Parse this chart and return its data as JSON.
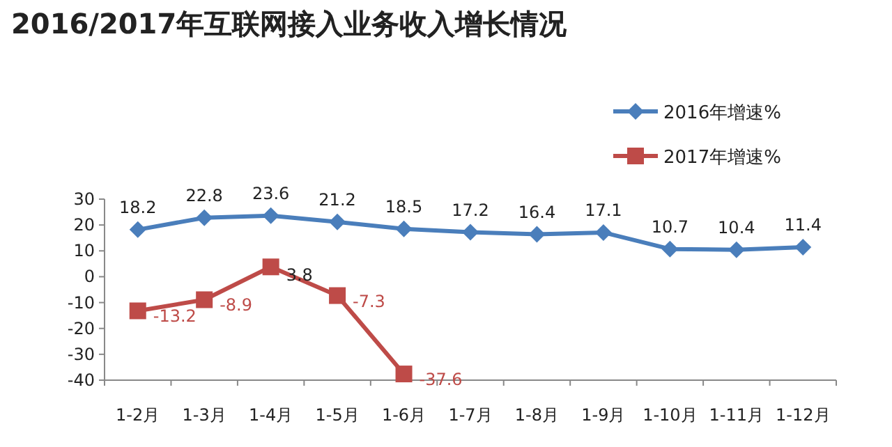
{
  "chart_data": {
    "type": "line",
    "title": "2016/2017年互联网接入业务收入增长情况",
    "categories": [
      "1-2月",
      "1-3月",
      "1-4月",
      "1-5月",
      "1-6月",
      "1-7月",
      "1-8月",
      "1-9月",
      "1-10月",
      "1-11月",
      "1-12月"
    ],
    "series": [
      {
        "name": "2016年增速%",
        "color": "#4a7ebb",
        "marker": "diamond",
        "values": [
          18.2,
          22.8,
          23.6,
          21.2,
          18.5,
          17.2,
          16.4,
          17.1,
          10.7,
          10.4,
          11.4
        ]
      },
      {
        "name": "2017年增速%",
        "color": "#be4b48",
        "marker": "square",
        "values": [
          -13.2,
          -8.9,
          3.8,
          -7.3,
          -37.6,
          null,
          null,
          null,
          null,
          null,
          null
        ]
      }
    ],
    "ylim": [
      -40,
      30
    ],
    "yticks": [
      -40,
      -30,
      -20,
      -10,
      0,
      10,
      20,
      30
    ],
    "data_labels": true,
    "legend": "top right",
    "grid": false
  }
}
